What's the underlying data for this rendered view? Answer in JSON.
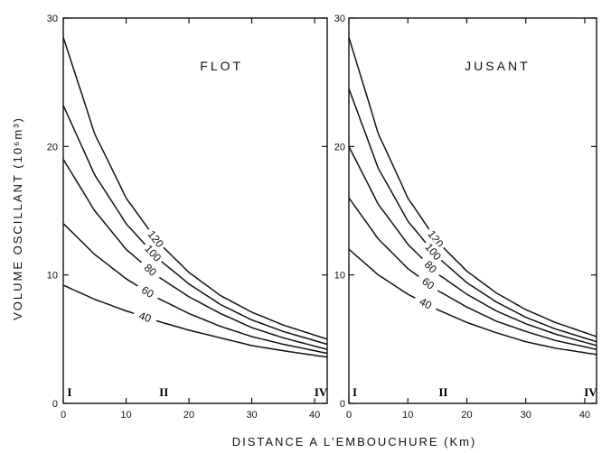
{
  "chart_data": {
    "type": "line",
    "xlabel": "DISTANCE  A  L'EMBOUCHURE  (Km)",
    "ylabel": "VOLUME  OSCILLANT  (10⁶m³)",
    "xlim": [
      0,
      42
    ],
    "ylim": [
      0,
      30
    ],
    "x_ticks": [
      "0",
      "10",
      "20",
      "30",
      "40"
    ],
    "y_ticks": [
      "0",
      "10",
      "20",
      "30"
    ],
    "stations": [
      {
        "label": "I",
        "x": 1
      },
      {
        "label": "II",
        "x": 16
      },
      {
        "label": "IV",
        "x": 41
      }
    ],
    "panels": [
      {
        "title": "FLOT",
        "series": [
          {
            "name": "120",
            "x": [
              0,
              5,
              10,
              15,
              20,
              25,
              30,
              35,
              42
            ],
            "values": [
              28.5,
              21.0,
              16.0,
              12.6,
              10.2,
              8.4,
              7.1,
              6.1,
              5.0
            ]
          },
          {
            "name": "100",
            "x": [
              0,
              5,
              10,
              15,
              20,
              25,
              30,
              35,
              42
            ],
            "values": [
              23.2,
              17.8,
              14.0,
              11.3,
              9.3,
              7.7,
              6.5,
              5.6,
              4.6
            ]
          },
          {
            "name": "80",
            "x": [
              0,
              5,
              10,
              15,
              20,
              25,
              30,
              35,
              42
            ],
            "values": [
              19.0,
              15.0,
              12.0,
              9.9,
              8.3,
              7.0,
              5.9,
              5.1,
              4.2
            ]
          },
          {
            "name": "60",
            "x": [
              0,
              5,
              10,
              15,
              20,
              25,
              30,
              35,
              42
            ],
            "values": [
              14.0,
              11.6,
              9.7,
              8.2,
              7.0,
              6.0,
              5.2,
              4.6,
              3.9
            ]
          },
          {
            "name": "40",
            "x": [
              0,
              5,
              10,
              15,
              20,
              25,
              30,
              35,
              42
            ],
            "values": [
              9.2,
              8.1,
              7.2,
              6.4,
              5.7,
              5.1,
              4.5,
              4.1,
              3.6
            ]
          }
        ]
      },
      {
        "title": "JUSANT",
        "series": [
          {
            "name": "120",
            "x": [
              0,
              5,
              10,
              15,
              20,
              25,
              30,
              35,
              42
            ],
            "values": [
              28.5,
              21.0,
              16.0,
              12.6,
              10.3,
              8.6,
              7.3,
              6.3,
              5.2
            ]
          },
          {
            "name": "100",
            "x": [
              0,
              5,
              10,
              15,
              20,
              25,
              30,
              35,
              42
            ],
            "values": [
              24.5,
              18.3,
              14.2,
              11.4,
              9.4,
              7.9,
              6.7,
              5.8,
              4.8
            ]
          },
          {
            "name": "80",
            "x": [
              0,
              5,
              10,
              15,
              20,
              25,
              30,
              35,
              42
            ],
            "values": [
              20.0,
              15.5,
              12.4,
              10.1,
              8.5,
              7.2,
              6.2,
              5.4,
              4.5
            ]
          },
          {
            "name": "60",
            "x": [
              0,
              5,
              10,
              15,
              20,
              25,
              30,
              35,
              42
            ],
            "values": [
              16.0,
              12.8,
              10.5,
              8.8,
              7.5,
              6.4,
              5.6,
              4.9,
              4.2
            ]
          },
          {
            "name": "40",
            "x": [
              0,
              5,
              10,
              15,
              20,
              25,
              30,
              35,
              42
            ],
            "values": [
              12.0,
              10.0,
              8.5,
              7.3,
              6.3,
              5.5,
              4.8,
              4.3,
              3.8
            ]
          }
        ]
      }
    ]
  }
}
